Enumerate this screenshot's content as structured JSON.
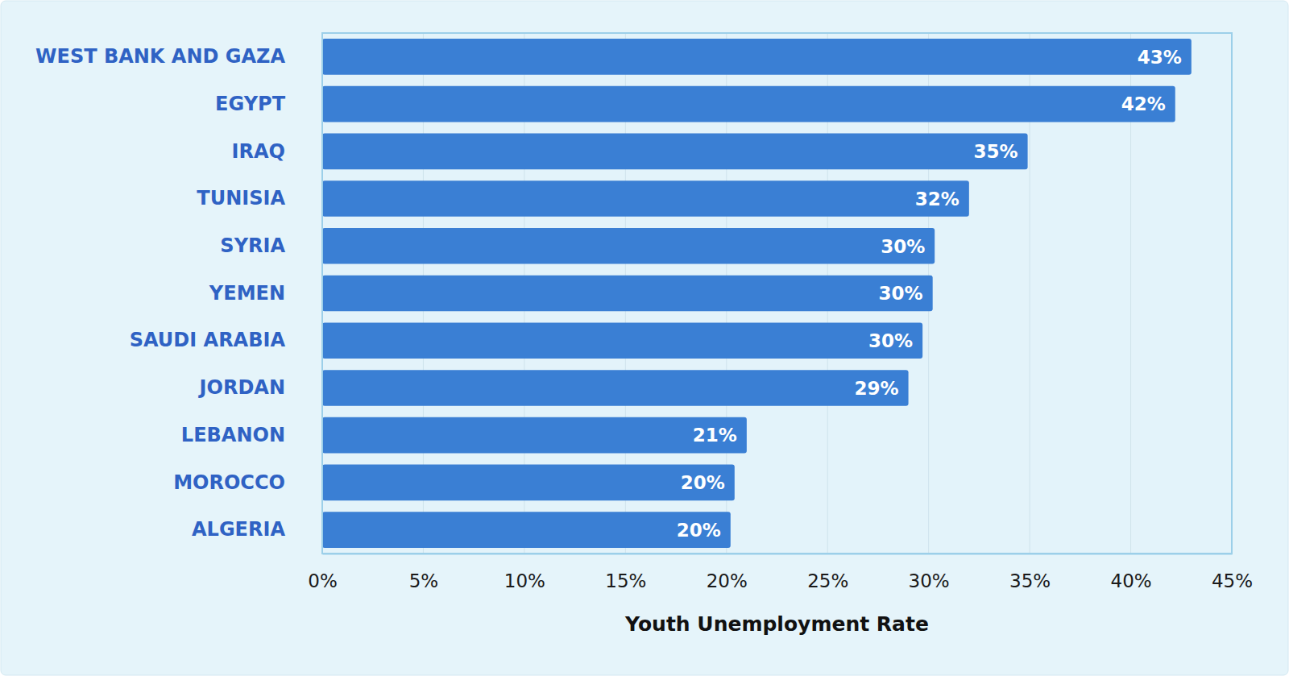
{
  "chart_data": {
    "type": "bar",
    "orientation": "horizontal",
    "xlabel": "Youth Unemployment Rate",
    "categories": [
      "WEST BANK AND GAZA",
      "EGYPT",
      "IRAQ",
      "TUNISIA",
      "SYRIA",
      "YEMEN",
      "SAUDI ARABIA",
      "JORDAN",
      "LEBANON",
      "MOROCCO",
      "ALGERIA"
    ],
    "values": [
      43,
      42.2,
      34.9,
      32,
      30.3,
      30.2,
      29.7,
      29,
      21,
      20.4,
      20.2
    ],
    "value_labels": [
      "43%",
      "42%",
      "35%",
      "32%",
      "30%",
      "30%",
      "30%",
      "29%",
      "21%",
      "20%",
      "20%"
    ],
    "color": "#3a7fd4",
    "xlim": [
      0,
      45
    ],
    "xticks": [
      {
        "value": 0,
        "label": "0%"
      },
      {
        "value": 5,
        "label": "5%"
      },
      {
        "value": 10,
        "label": "10%"
      },
      {
        "value": 15,
        "label": "15%"
      },
      {
        "value": 20,
        "label": "20%"
      },
      {
        "value": 25,
        "label": "25%"
      },
      {
        "value": 30,
        "label": "30%"
      },
      {
        "value": 35,
        "label": "35%"
      },
      {
        "value": 40,
        "label": "40%"
      },
      {
        "value": 45,
        "label": "45%"
      }
    ],
    "grid": true,
    "data_labels": true
  }
}
